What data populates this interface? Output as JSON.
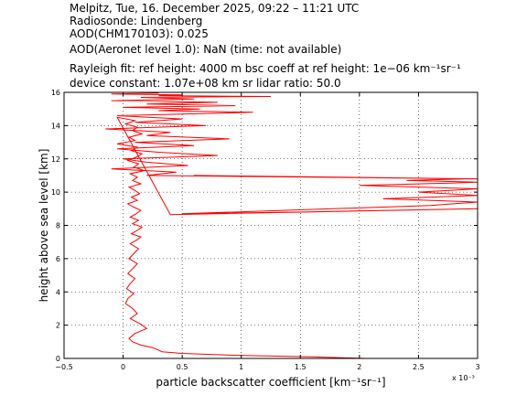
{
  "header": {
    "line1": "Melpitz, Tue, 16. December 2025, 09:22 – 11:21 UTC",
    "line2": "Radiosonde: Lindenberg",
    "line3": "AOD(CHM170103): 0.025",
    "line4": "AOD(Aeronet level 1.0): NaN   (time: not available)",
    "line5": "Rayleigh fit:     ref height: 4000 m     bsc coeff at ref height: 1e−06 km⁻¹sr⁻¹",
    "line6": "device constant: 1.07e+08 km sr     lidar ratio: 50.0"
  },
  "chart_data": {
    "type": "line",
    "xlabel": "particle backscatter coefficient [km⁻¹sr⁻¹]",
    "ylabel": "height above sea level [km]",
    "x_scale_label": "x 10⁻³",
    "xlim": [
      -0.5,
      3
    ],
    "ylim": [
      0,
      16
    ],
    "xticks": [
      "−0.5",
      "0",
      "0.5",
      "1",
      "1.5",
      "2",
      "2.5",
      "3"
    ],
    "yticks": [
      "0",
      "2",
      "4",
      "6",
      "8",
      "10",
      "12",
      "14",
      "16"
    ],
    "grid": true,
    "colors": {
      "line": "#ff0000",
      "grid": "#000000"
    },
    "series": [
      {
        "x": [
          2.05,
          1.6,
          0.9,
          0.5,
          0.33,
          0.3,
          0.25,
          0.15,
          0.08,
          0.05,
          0.1,
          0.2,
          0.14,
          0.06,
          0.12,
          0.08,
          0.02,
          0.04,
          0.09,
          0.03,
          0.06,
          0.1,
          0.04,
          0.08,
          0.12,
          0.05,
          0.09,
          0.13,
          0.06,
          0.11,
          0.15,
          0.07,
          0.12,
          0.16,
          0.08,
          0.13,
          0.06,
          0.11,
          0.15,
          0.09,
          0.04,
          0.12,
          0.07,
          0.14,
          0.1,
          0.05,
          0.15,
          0.08,
          0.12,
          0.06,
          0.18,
          0.09,
          0.13,
          0.04,
          0.11,
          0.16,
          0.07,
          0.12,
          -0.05,
          0.1,
          0.05,
          0.16,
          0.08,
          0.12,
          0.02,
          0.1,
          -0.05,
          0.4,
          3.0,
          1.5,
          0.5,
          2.6,
          3.0,
          2.2,
          3.0,
          2.5,
          3.0,
          2.0,
          2.8,
          3.0,
          2.4,
          2.9,
          1.8,
          0.6,
          3.0,
          0.2,
          0.45,
          -0.1,
          0.55,
          0.2,
          0.0,
          0.8,
          0.3,
          -0.05,
          0.6,
          0.1,
          0.9,
          0.2,
          0.4,
          -0.15,
          0.7,
          0.1,
          0.5,
          -0.05,
          1.1,
          0.3,
          0.65,
          0.0,
          0.95,
          0.2,
          0.8,
          -0.1,
          0.6,
          0.15,
          1.25,
          0.3,
          0.5,
          -0.1,
          0.3
        ],
        "y": [
          0.0,
          0.1,
          0.2,
          0.3,
          0.4,
          0.5,
          0.65,
          0.8,
          1.0,
          1.2,
          1.5,
          1.8,
          2.1,
          2.4,
          2.7,
          3.0,
          3.3,
          3.6,
          3.9,
          4.2,
          4.5,
          4.8,
          5.1,
          5.4,
          5.7,
          6.0,
          6.3,
          6.6,
          6.9,
          7.1,
          7.3,
          7.5,
          7.7,
          7.9,
          8.1,
          8.3,
          8.5,
          8.7,
          8.9,
          9.1,
          9.3,
          9.5,
          9.7,
          9.9,
          10.1,
          10.3,
          10.5,
          10.7,
          10.9,
          11.1,
          11.3,
          11.5,
          11.7,
          11.9,
          12.1,
          12.3,
          12.5,
          12.7,
          12.9,
          13.1,
          13.3,
          13.5,
          13.7,
          13.9,
          14.1,
          14.3,
          14.5,
          8.65,
          9.0,
          8.8,
          8.7,
          9.2,
          9.4,
          9.6,
          9.8,
          10.0,
          10.2,
          10.4,
          10.55,
          10.6,
          10.7,
          10.8,
          10.9,
          11.0,
          10.8,
          11.0,
          11.2,
          11.4,
          11.6,
          11.8,
          12.0,
          12.2,
          12.4,
          12.6,
          12.8,
          13.0,
          13.2,
          13.4,
          13.6,
          13.8,
          14.0,
          14.2,
          14.4,
          14.6,
          14.8,
          14.9,
          15.0,
          15.1,
          15.2,
          15.3,
          15.4,
          15.5,
          15.6,
          15.7,
          15.75,
          15.8,
          15.85,
          15.9,
          15.95
        ]
      }
    ]
  }
}
